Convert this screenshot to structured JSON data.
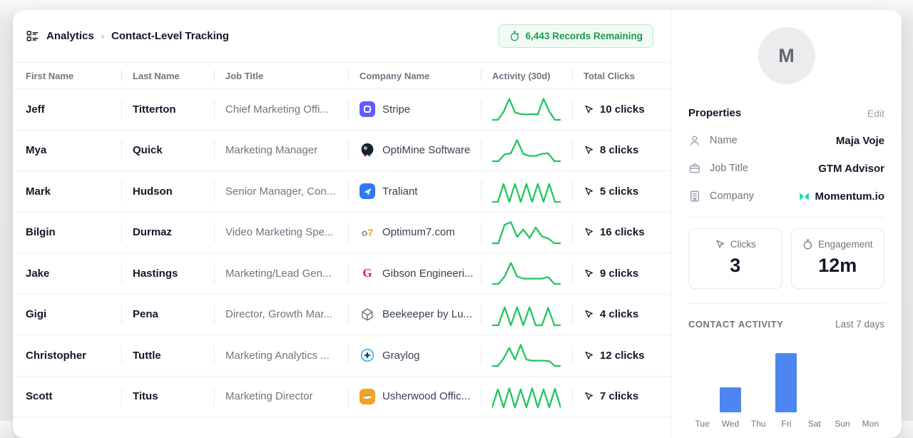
{
  "breadcrumb": {
    "section": "Analytics",
    "separator": "›",
    "page": "Contact-Level Tracking"
  },
  "records_badge": {
    "icon": "stopwatch-icon",
    "label": "6,443 Records Remaining"
  },
  "table": {
    "columns": [
      "First Name",
      "Last Name",
      "Job Title",
      "Company Name",
      "Activity (30d)",
      "Total Clicks"
    ],
    "spark_color": "#22c55e",
    "rows": [
      {
        "first": "Jeff",
        "last": "Titterton",
        "title": "Chief Marketing Offi...",
        "company": "Stripe",
        "logo": "stripe",
        "clicks": "10 clicks",
        "spark": [
          0,
          0,
          1.5,
          4,
          1.4,
          1.1,
          1,
          1.1,
          1,
          4,
          1.6,
          0,
          0
        ]
      },
      {
        "first": "Mya",
        "last": "Quick",
        "title": "Marketing Manager",
        "company": "OptiMine Software",
        "logo": "optimine",
        "clicks": "8 clicks",
        "spark": [
          0,
          0,
          1.3,
          1.5,
          4,
          1.4,
          1,
          1,
          1.4,
          1.5,
          0,
          0
        ]
      },
      {
        "first": "Mark",
        "last": "Hudson",
        "title": "Senior Manager, Con...",
        "company": "Traliant",
        "logo": "traliant",
        "clicks": "5 clicks",
        "spark": [
          0,
          0,
          3.4,
          0,
          3.4,
          0,
          3.4,
          0,
          3.4,
          0,
          3.4,
          0,
          0
        ]
      },
      {
        "first": "Bilgin",
        "last": "Durmaz",
        "title": "Video Marketing Spe...",
        "company": "Optimum7.com",
        "logo": "optimum7",
        "clicks": "16 clicks",
        "spark": [
          0,
          0,
          3.5,
          4,
          1.2,
          2.6,
          1,
          3,
          1.3,
          0.9,
          0,
          0
        ]
      },
      {
        "first": "Jake",
        "last": "Hastings",
        "title": "Marketing/Lead Gen...",
        "company": "Gibson Engineeri...",
        "logo": "gibson",
        "clicks": "9 clicks",
        "spark": [
          0,
          0,
          1.4,
          4,
          1.4,
          1,
          1,
          1,
          1,
          1.3,
          0,
          0
        ]
      },
      {
        "first": "Gigi",
        "last": "Pena",
        "title": "Director, Growth Mar...",
        "company": "Beekeeper by Lu...",
        "logo": "beekeeper",
        "clicks": "4 clicks",
        "spark": [
          0,
          0,
          3.4,
          0,
          3.4,
          0,
          3.4,
          0,
          0,
          3.3,
          0,
          0
        ]
      },
      {
        "first": "Christopher",
        "last": "Tuttle",
        "title": "Marketing Analytics ...",
        "company": "Graylog",
        "logo": "graylog",
        "clicks": "12 clicks",
        "spark": [
          0,
          0,
          1.4,
          3.4,
          1.2,
          4,
          1.2,
          1,
          1,
          1,
          0.9,
          0,
          0
        ]
      },
      {
        "first": "Scott",
        "last": "Titus",
        "title": "Marketing Director",
        "company": "Usherwood Offic...",
        "logo": "usherwood",
        "clicks": "7 clicks",
        "spark": [
          0,
          3.4,
          0,
          3.6,
          0,
          3.4,
          0,
          3.6,
          0,
          3.4,
          0,
          3.5,
          0
        ]
      }
    ]
  },
  "sidebar": {
    "avatar_initial": "M",
    "properties": {
      "heading": "Properties",
      "edit_label": "Edit",
      "rows": [
        {
          "icon": "person-icon",
          "label": "Name",
          "value": "Maja Voje"
        },
        {
          "icon": "briefcase-icon",
          "label": "Job Title",
          "value": "GTM Advisor"
        },
        {
          "icon": "building-icon",
          "label": "Company",
          "value": "Momentum.io",
          "value_logo": "momentum"
        }
      ]
    },
    "stats": [
      {
        "icon": "cursor-click-icon",
        "label": "Clicks",
        "value": "3"
      },
      {
        "icon": "stopwatch-icon",
        "label": "Engagement",
        "value": "12m"
      }
    ],
    "activity": {
      "heading": "CONTACT ACTIVITY",
      "range": "Last 7 days"
    }
  },
  "chart_data": {
    "type": "bar",
    "title": "CONTACT ACTIVITY",
    "subtitle": "Last 7 days",
    "categories": [
      "Tue",
      "Wed",
      "Thu",
      "Fri",
      "Sat",
      "Sun",
      "Mon"
    ],
    "values": [
      0,
      1,
      0,
      2.4,
      0,
      0,
      0
    ],
    "ylim": [
      0,
      3
    ],
    "bar_color": "#4d86f0",
    "xlabel": "",
    "ylabel": "",
    "grid": false,
    "legend": false
  },
  "colors": {
    "accent_green": "#22c55e",
    "badge_green": "#189a51",
    "bar_blue": "#4d86f0",
    "momentum_teal": "#10d9a8"
  }
}
